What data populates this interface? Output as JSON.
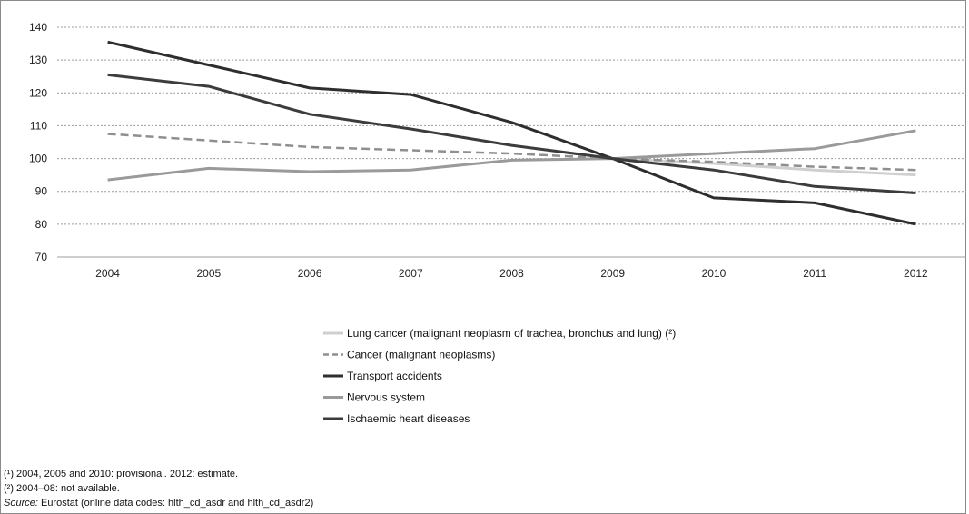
{
  "chart_data": {
    "type": "line",
    "title": "",
    "xlabel": "",
    "ylabel": "",
    "x": [
      "2004",
      "2005",
      "2006",
      "2007",
      "2008",
      "2009",
      "2010",
      "2011",
      "2012"
    ],
    "ylim": [
      70,
      140
    ],
    "yticks": [
      70,
      80,
      90,
      100,
      110,
      120,
      130,
      140
    ],
    "grid": "horizontal dotted",
    "legend_position": "below chart",
    "series": [
      {
        "name": "Lung cancer (malignant neoplasm of trachea, bronchus and lung) (²)",
        "color": "#cfcfcf",
        "style": "solid",
        "values": [
          null,
          null,
          null,
          null,
          null,
          100,
          98.5,
          96.5,
          95
        ]
      },
      {
        "name": "Cancer (malignant neoplasms)",
        "color": "#8f8f8f",
        "style": "dashed",
        "values": [
          107.5,
          105.5,
          103.5,
          102.5,
          101.5,
          100,
          99,
          97.5,
          96.5
        ]
      },
      {
        "name": "Transport accidents",
        "color": "#2e2e2e",
        "style": "solid",
        "values": [
          135.5,
          128.5,
          121.5,
          119.5,
          111,
          100,
          88,
          86.5,
          80
        ]
      },
      {
        "name": "Nervous system",
        "color": "#9a9a9a",
        "style": "solid",
        "values": [
          93.5,
          97,
          96,
          96.5,
          99.5,
          100,
          101.5,
          103,
          108.5
        ]
      },
      {
        "name": "Ischaemic heart diseases",
        "color": "#3c3c3c",
        "style": "solid",
        "values": [
          125.5,
          122,
          113.5,
          109,
          104,
          100,
          96.5,
          91.5,
          89.5
        ]
      }
    ]
  },
  "footnotes": {
    "note1": "(¹) 2004, 2005 and 2010: provisional. 2012: estimate.",
    "note2": "(²) 2004–08: not available.",
    "source_label": "Source:",
    "source_text": " Eurostat (online data codes: hlth_cd_asdr and hlth_cd_asdr2)"
  }
}
